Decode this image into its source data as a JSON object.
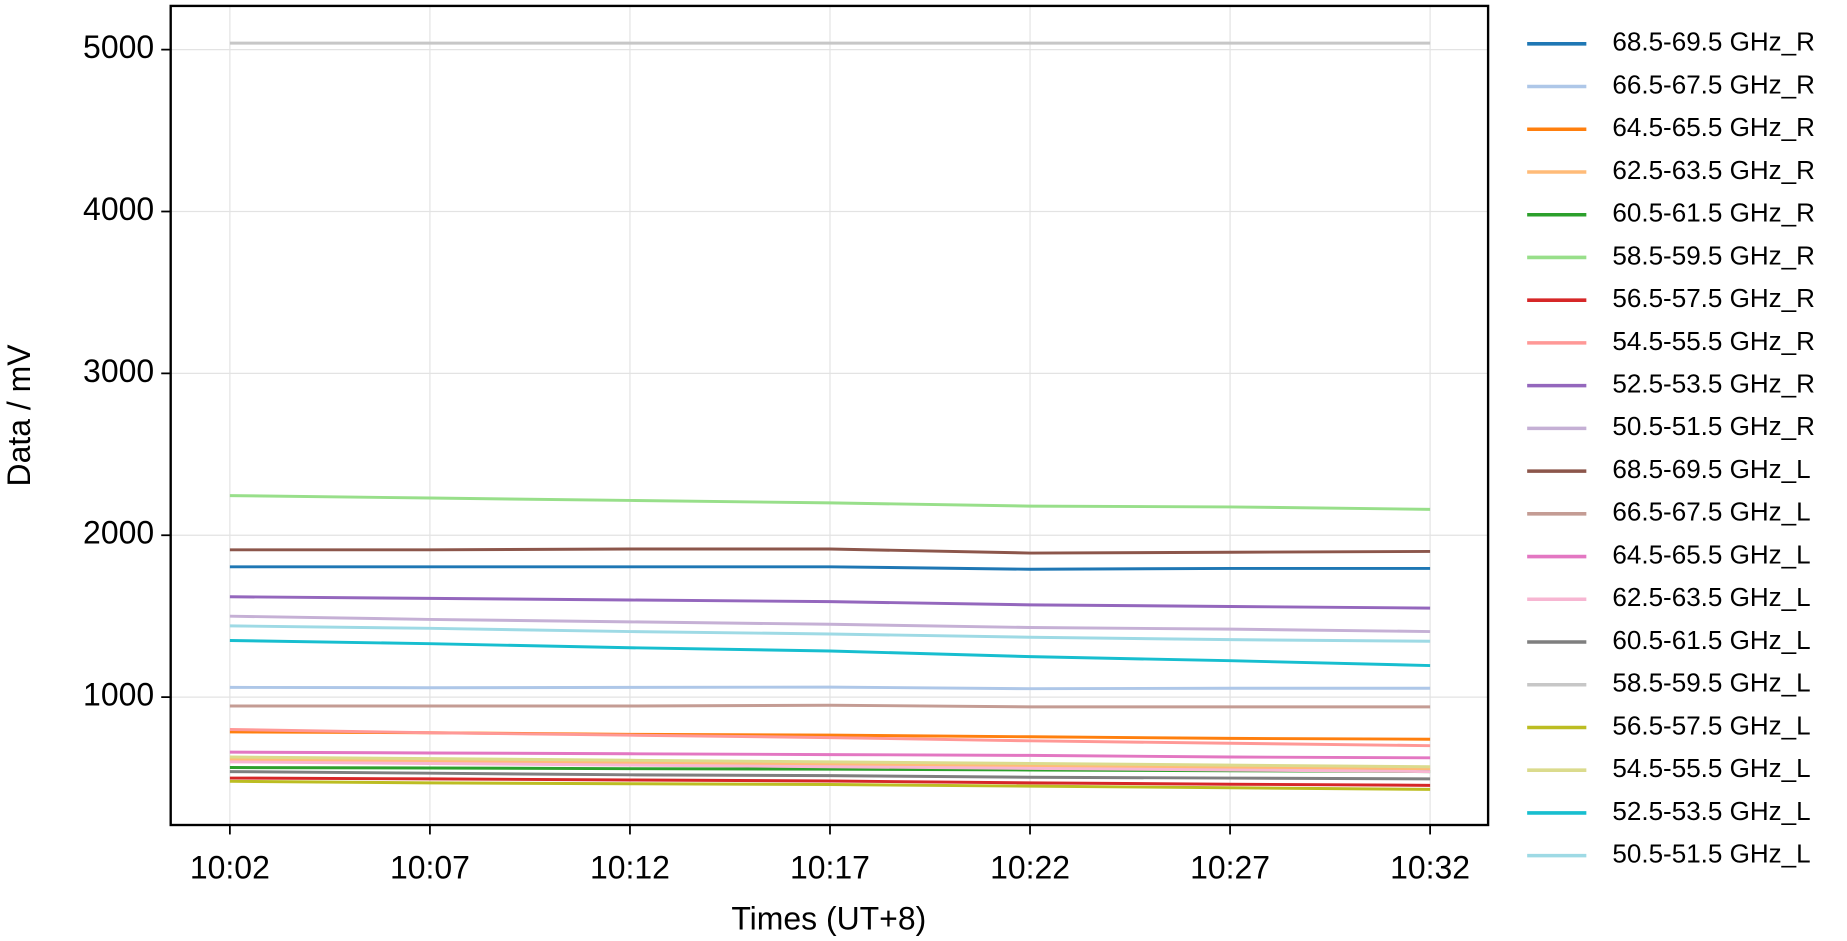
{
  "chart_data": {
    "type": "line",
    "x_label": "Times (UT+8)",
    "y_label": "Data / mV",
    "categories": [
      "10:02",
      "10:07",
      "10:12",
      "10:17",
      "10:22",
      "10:27",
      "10:32"
    ],
    "ylim": [
      210,
      5270
    ],
    "yticks": [
      1000,
      2000,
      3000,
      4000,
      5000
    ],
    "grid": true,
    "series": [
      {
        "name": "68.5-69.5 GHz_R",
        "color": "#1f77b4",
        "values": [
          1805,
          1805,
          1805,
          1805,
          1790,
          1795,
          1795
        ]
      },
      {
        "name": "66.5-67.5 GHz_R",
        "color": "#aec7e8",
        "values": [
          1060,
          1058,
          1060,
          1062,
          1052,
          1055,
          1055
        ]
      },
      {
        "name": "64.5-65.5 GHz_R",
        "color": "#ff7f0e",
        "values": [
          785,
          780,
          770,
          765,
          755,
          745,
          740
        ]
      },
      {
        "name": "62.5-63.5 GHz_R",
        "color": "#ffbb78",
        "values": [
          615,
          605,
          595,
          585,
          575,
          565,
          555
        ]
      },
      {
        "name": "60.5-61.5 GHz_R",
        "color": "#2ca02c",
        "values": [
          565,
          562,
          558,
          555,
          550,
          545,
          540
        ]
      },
      {
        "name": "58.5-59.5 GHz_R",
        "color": "#98df8a",
        "values": [
          2245,
          2230,
          2215,
          2200,
          2180,
          2175,
          2160
        ]
      },
      {
        "name": "56.5-57.5 GHz_R",
        "color": "#d62728",
        "values": [
          500,
          495,
          488,
          482,
          470,
          462,
          455
        ]
      },
      {
        "name": "54.5-55.5 GHz_R",
        "color": "#ff9896",
        "values": [
          800,
          780,
          765,
          750,
          730,
          715,
          700
        ]
      },
      {
        "name": "52.5-53.5 GHz_R",
        "color": "#9467bd",
        "values": [
          1620,
          1610,
          1600,
          1590,
          1570,
          1560,
          1550
        ]
      },
      {
        "name": "50.5-51.5 GHz_R",
        "color": "#c5b0d5",
        "values": [
          1500,
          1480,
          1465,
          1450,
          1430,
          1420,
          1405
        ]
      },
      {
        "name": "68.5-69.5 GHz_L",
        "color": "#8c564b",
        "values": [
          1910,
          1910,
          1915,
          1915,
          1890,
          1895,
          1900
        ]
      },
      {
        "name": "66.5-67.5 GHz_L",
        "color": "#c49c94",
        "values": [
          945,
          945,
          945,
          950,
          940,
          940,
          940
        ]
      },
      {
        "name": "64.5-65.5 GHz_L",
        "color": "#e377c2",
        "values": [
          660,
          655,
          650,
          645,
          640,
          630,
          625
        ]
      },
      {
        "name": "62.5-63.5 GHz_L",
        "color": "#f7b6d2",
        "values": [
          600,
          590,
          580,
          570,
          560,
          550,
          540
        ]
      },
      {
        "name": "60.5-61.5 GHz_L",
        "color": "#7f7f7f",
        "values": [
          540,
          530,
          520,
          515,
          505,
          500,
          495
        ]
      },
      {
        "name": "58.5-59.5 GHz_L",
        "color": "#c7c7c7",
        "values": [
          5040,
          5040,
          5040,
          5040,
          5040,
          5040,
          5040
        ]
      },
      {
        "name": "56.5-57.5 GHz_L",
        "color": "#bcbd22",
        "values": [
          480,
          470,
          465,
          460,
          450,
          440,
          430
        ]
      },
      {
        "name": "54.5-55.5 GHz_L",
        "color": "#dbdb8d",
        "values": [
          630,
          620,
          610,
          600,
          590,
          580,
          570
        ]
      },
      {
        "name": "52.5-53.5 GHz_L",
        "color": "#17becf",
        "values": [
          1350,
          1330,
          1305,
          1285,
          1250,
          1225,
          1195
        ]
      },
      {
        "name": "50.5-51.5 GHz_L",
        "color": "#9edae5",
        "values": [
          1440,
          1425,
          1405,
          1390,
          1370,
          1355,
          1345
        ]
      }
    ]
  }
}
